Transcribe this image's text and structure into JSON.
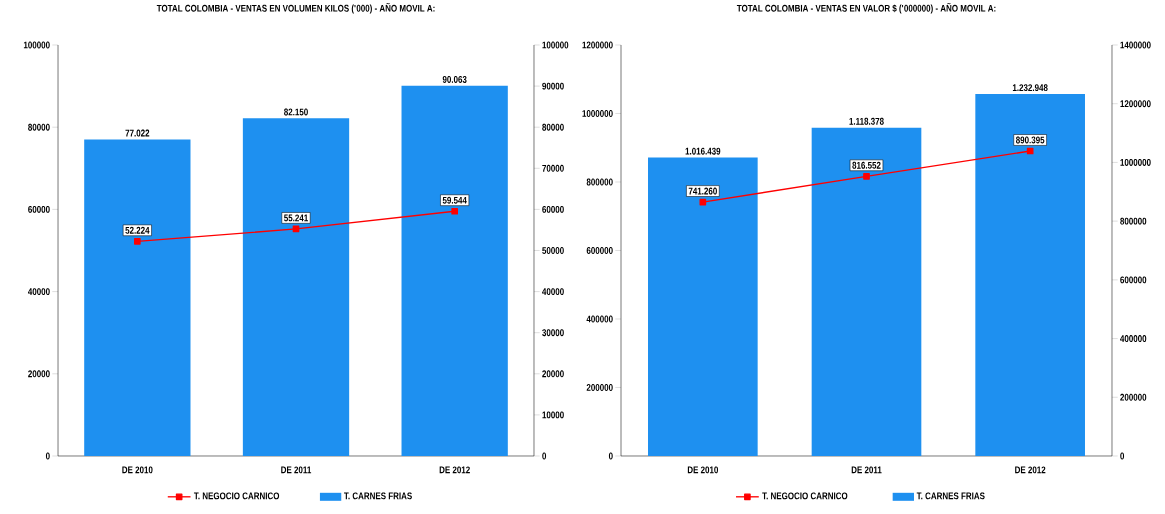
{
  "chart_data": [
    {
      "type": "bar",
      "title": "TOTAL COLOMBIA - VENTAS EN VOLUMEN KILOS ('000) - AÑO MOVIL A:",
      "categories": [
        "DE 2010",
        "DE 2011",
        "DE 2012"
      ],
      "series": [
        {
          "name": "T. NEGOCIO CARNICO",
          "type": "line",
          "color": "#ff0000",
          "marker": "square",
          "values": [
            52224,
            55241,
            59544
          ],
          "value_labels": [
            "52.224",
            "55.241",
            "59.544"
          ]
        },
        {
          "name": "T. CARNES FRIAS",
          "color": "#1e90f0",
          "axis": "y2",
          "values": [
            77022,
            82150,
            90063
          ],
          "value_labels": [
            "77.022",
            "82.150",
            "90.063"
          ]
        }
      ],
      "ylim": [
        0,
        100000
      ],
      "yticks": [
        0,
        20000,
        40000,
        60000,
        80000,
        100000
      ],
      "y2lim": [
        0,
        100000
      ],
      "y2ticks": [
        0,
        10000,
        20000,
        30000,
        40000,
        50000,
        60000,
        70000,
        80000,
        90000,
        100000
      ],
      "legend": "bottom"
    },
    {
      "type": "bar",
      "title": "TOTAL COLOMBIA - VENTAS EN VALOR $ ('000000) - AÑO MOVIL A:",
      "categories": [
        "DE 2010",
        "DE 2011",
        "DE 2012"
      ],
      "series": [
        {
          "name": "T. NEGOCIO CARNICO",
          "type": "line",
          "color": "#ff0000",
          "marker": "square",
          "values": [
            741260,
            816552,
            890395
          ],
          "value_labels": [
            "741.260",
            "816.552",
            "890.395"
          ]
        },
        {
          "name": "T. CARNES FRIAS",
          "color": "#1e90f0",
          "axis": "y2",
          "values": [
            1016439,
            1118378,
            1232948
          ],
          "value_labels": [
            "1.016.439",
            "1.118.378",
            "1.232.948"
          ]
        }
      ],
      "ylim": [
        0,
        1200000
      ],
      "yticks": [
        0,
        200000,
        400000,
        600000,
        800000,
        1000000,
        1200000
      ],
      "y2lim": [
        0,
        1400000
      ],
      "y2ticks": [
        0,
        200000,
        400000,
        600000,
        800000,
        1000000,
        1200000,
        1400000
      ],
      "legend": "bottom"
    }
  ]
}
